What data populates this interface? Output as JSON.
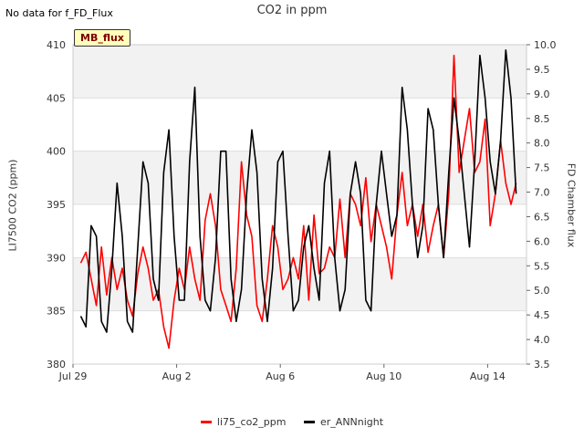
{
  "note": "No data for f_FD_Flux",
  "badge": "MB_flux",
  "colors": {
    "li75": "#ff0000",
    "ann": "#000000",
    "band": "#f2f2f2",
    "grid": "#dddddd"
  },
  "chart_data": {
    "type": "line",
    "title": "CO2 in ppm",
    "ylabel": "LI7500 CO2 (ppm)",
    "y2label": "FD Chamber flux",
    "xlim": [
      0,
      17.5
    ],
    "ylim": [
      380,
      410
    ],
    "y2lim": [
      3.5,
      10.0
    ],
    "x_ticks": [
      {
        "x": 0,
        "label": "Jul 29"
      },
      {
        "x": 4,
        "label": "Aug 2"
      },
      {
        "x": 8,
        "label": "Aug 6"
      },
      {
        "x": 12,
        "label": "Aug 10"
      },
      {
        "x": 16,
        "label": "Aug 14"
      }
    ],
    "y_ticks": [
      380,
      385,
      390,
      395,
      400,
      405,
      410
    ],
    "y2_ticks": [
      "3.5",
      "4.0",
      "4.5",
      "5.0",
      "5.5",
      "6.0",
      "6.5",
      "7.0",
      "7.5",
      "8.0",
      "8.5",
      "9.0",
      "9.5",
      "10.0"
    ],
    "series": [
      {
        "name": "li75_co2_ppm",
        "color": "#ff0000",
        "x": [
          0.3,
          0.5,
          0.7,
          0.9,
          1.1,
          1.3,
          1.5,
          1.7,
          1.9,
          2.1,
          2.3,
          2.5,
          2.7,
          2.9,
          3.1,
          3.3,
          3.5,
          3.7,
          3.9,
          4.1,
          4.3,
          4.5,
          4.7,
          4.9,
          5.1,
          5.3,
          5.5,
          5.7,
          5.9,
          6.1,
          6.3,
          6.5,
          6.7,
          6.9,
          7.1,
          7.3,
          7.5,
          7.7,
          7.9,
          8.1,
          8.3,
          8.5,
          8.7,
          8.9,
          9.1,
          9.3,
          9.5,
          9.7,
          9.9,
          10.1,
          10.3,
          10.5,
          10.7,
          10.9,
          11.1,
          11.3,
          11.5,
          11.7,
          11.9,
          12.1,
          12.3,
          12.5,
          12.7,
          12.9,
          13.1,
          13.3,
          13.5,
          13.7,
          13.9,
          14.1,
          14.3,
          14.5,
          14.7,
          14.9,
          15.1,
          15.3,
          15.5,
          15.7,
          15.9,
          16.1,
          16.3,
          16.5,
          16.7,
          16.9,
          17.1
        ],
        "y": [
          389.5,
          390.5,
          388,
          385.5,
          391,
          386.5,
          390,
          387,
          389,
          386,
          384.5,
          388.5,
          391,
          389,
          386,
          387,
          383.5,
          381.5,
          386,
          389,
          387,
          391,
          388,
          386,
          393.5,
          396,
          393,
          387,
          385.5,
          384,
          389,
          399,
          394,
          392,
          385.5,
          384,
          388,
          393,
          391,
          387,
          388,
          390,
          388,
          393,
          386,
          394,
          388.5,
          389,
          391,
          390,
          395.5,
          390,
          396,
          395,
          393,
          397.5,
          391.5,
          395,
          393,
          391,
          388,
          394,
          398,
          393,
          395,
          392,
          395,
          390.5,
          393,
          395,
          390,
          396,
          409,
          398,
          401,
          404,
          398,
          399,
          403,
          393,
          396,
          401,
          397,
          395,
          397
        ]
      },
      {
        "name": "er_ANNnight",
        "color": "#000000",
        "x": [
          0.3,
          0.5,
          0.7,
          0.9,
          1.1,
          1.3,
          1.5,
          1.7,
          1.9,
          2.1,
          2.3,
          2.5,
          2.7,
          2.9,
          3.1,
          3.3,
          3.5,
          3.7,
          3.9,
          4.1,
          4.3,
          4.5,
          4.7,
          4.9,
          5.1,
          5.3,
          5.5,
          5.7,
          5.9,
          6.1,
          6.3,
          6.5,
          6.7,
          6.9,
          7.1,
          7.3,
          7.5,
          7.7,
          7.9,
          8.1,
          8.3,
          8.5,
          8.7,
          8.9,
          9.1,
          9.3,
          9.5,
          9.7,
          9.9,
          10.1,
          10.3,
          10.5,
          10.7,
          10.9,
          11.1,
          11.3,
          11.5,
          11.7,
          11.9,
          12.1,
          12.3,
          12.5,
          12.7,
          12.9,
          13.1,
          13.3,
          13.5,
          13.7,
          13.9,
          14.1,
          14.3,
          14.5,
          14.7,
          14.9,
          15.1,
          15.3,
          15.5,
          15.7,
          15.9,
          16.1,
          16.3,
          16.5,
          16.7,
          16.9,
          17.1
        ],
        "y": [
          384.5,
          383.5,
          393,
          392,
          384,
          383,
          389,
          397,
          392,
          384,
          383,
          391,
          399,
          397,
          388,
          386,
          398,
          402,
          392,
          386,
          386,
          399,
          406,
          392,
          386,
          385,
          390,
          400,
          400,
          388,
          384,
          387,
          396,
          402,
          398,
          388,
          384,
          389,
          399,
          400,
          392,
          385,
          386,
          391,
          393,
          389,
          386,
          397,
          400,
          390,
          385,
          387,
          396,
          399,
          396,
          386,
          385,
          395,
          400,
          396,
          392,
          394,
          406,
          402,
          395,
          390,
          393,
          404,
          402,
          395,
          390,
          398,
          405,
          401,
          396,
          391,
          399,
          409,
          405,
          399,
          396,
          401,
          409.5,
          405,
          396
        ]
      }
    ]
  }
}
